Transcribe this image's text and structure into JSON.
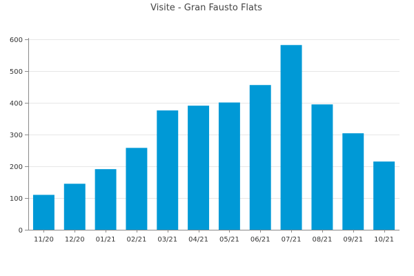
{
  "chart_data": {
    "type": "bar",
    "title": "Visite - Gran Fausto Flats",
    "xlabel": "",
    "ylabel": "",
    "categories": [
      "11/20",
      "12/20",
      "01/21",
      "02/21",
      "03/21",
      "04/21",
      "05/21",
      "06/21",
      "07/21",
      "08/21",
      "09/21",
      "10/21"
    ],
    "values": [
      110,
      145,
      191,
      258,
      376,
      391,
      401,
      456,
      582,
      395,
      304,
      215
    ],
    "ylim": [
      0,
      600
    ],
    "yticks": [
      0,
      100,
      200,
      300,
      400,
      500,
      600
    ],
    "grid": true,
    "legend": "none",
    "bar_color": "#0099d6"
  }
}
